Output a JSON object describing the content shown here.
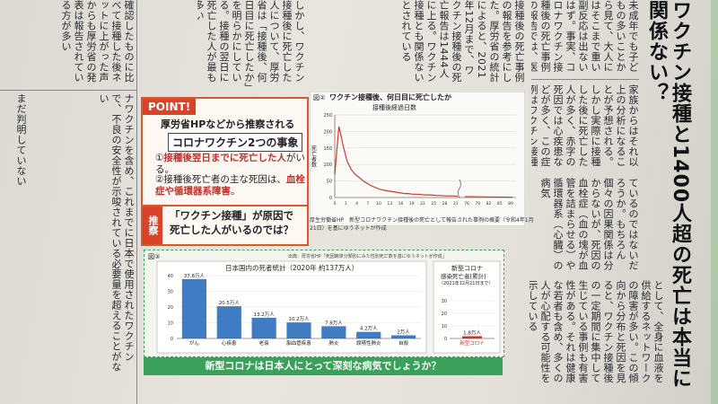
{
  "headline": "ワクチン接種と1400人超の死亡は本当に関係ない？",
  "right_col": "未成年でも子どもの多いことから見て、大人にはそこまで重い副反応は出ないはず。事実、コロナワクチン接種後の死亡事例の報告では、医療機関や製造販売業者から厚労省への報告が上がっていた。",
  "right_col2": "家族からはそれ以上の分析になることが予想される。しかし実際に接種した後に死亡した人が多く、赤字の死因では心疾患などが多く、この症例はワクチン接種との因果関係を示唆している",
  "right_col3": "ているのではないだろうか。もちろん個々の因果関係は分からないが、死因の血栓症（血の塊が血管を詰まらせる）や循環器系（心臓）の病気",
  "right_col4": "として、全身に血液を供給するネットワークの障害が多い。この傾向から分布と死因を見ると、ワクチン接種後の一定期間に集中して生じている事例も有害性がある。それは健康な若者も含め、多くの人が心配する可能性を示している",
  "mid_col": "接種後の死亡事例の報告を参考にした。厚労省の統計によると、2021年12月まで、ワクチン接種後の死亡報告は1444人に上る。ワクチン接種とも関係ないとされている",
  "mid_col2": "しかし、ワクチン接種後に死亡した人について、厚労省は「接種後、何日目に死亡したか」を明らかにしている。接種の翌日に死亡した人が最も多い",
  "left_col": "ナワクチンを含め、これまでに日本で使用されたワクチンで、不良の安全性が示唆されている必要量を超えることがない",
  "left_col2": "確認したものに比べて接種した後ネットに上がった声からも厚労省の発表は報告されている方が多い",
  "left_col3": "まだ判明していない",
  "point": {
    "tag": "POINT!",
    "title": "厚労省HPなどから推察される",
    "title2": "コロナワクチン2つの事象",
    "item1_prefix": "①",
    "item1_red": "接種後翌日までに死亡した人",
    "item1_suffix": "がいる。",
    "item2_prefix": "②接種後死亡者の主な死因は、",
    "item2_red": "血栓症や循環器系障害",
    "item2_suffix": "。"
  },
  "suisoku": {
    "tag": "推察",
    "line1": "「ワクチン接種」が原因で",
    "line2": "死亡した人がいるのでは？"
  },
  "fig2": {
    "label": "図②",
    "title": "ワクチン接種後、何日目に死亡したか",
    "xlabel": "接種後経過日数",
    "ylabel": "死亡者数",
    "caption": "厚生労働省HP　新型コロナワクチン接種後の死亡として報告された事例の概要（令和4年1月21日）を基にゆうネットが作成"
  },
  "fig3": {
    "label": "図③",
    "source": "出典：厚労省HP「死因簡単分類別にみた性別死亡数を基にゆうネットが作成」",
    "title": "日本国内の死者統計（2020年 約137万人）",
    "side_title1": "新型コロナ",
    "side_title2": "感染死亡者[累計]",
    "side_title3": "（2021年12月21日まで）"
  },
  "footer_q": "新型コロナは日本人にとって深刻な病気でしょうか？",
  "chart_data": [
    {
      "type": "line",
      "title": "ワクチン接種後、何日目に死亡したか",
      "xlabel": "接種後経過日数",
      "ylabel": "死亡者数",
      "x": [
        0,
        1,
        2,
        3,
        4,
        5,
        6,
        7,
        8,
        9,
        10,
        11,
        12,
        13,
        14,
        15,
        16,
        17,
        18,
        19,
        20,
        21,
        22,
        23,
        24,
        25,
        26,
        27,
        28,
        29,
        30
      ],
      "y": [
        70,
        215,
        160,
        110,
        85,
        70,
        60,
        50,
        42,
        35,
        30,
        25,
        22,
        20,
        18,
        16,
        14,
        12,
        12,
        10,
        10,
        9,
        8,
        8,
        7,
        6,
        6,
        5,
        5,
        5,
        4
      ],
      "x_ticks": [
        "0",
        "1",
        "4",
        "7",
        "10",
        "13",
        "16",
        "19",
        "22",
        "25",
        "28",
        "31",
        "76",
        "79",
        "82",
        "85",
        "89"
      ],
      "ylim": [
        0,
        250
      ],
      "y_ticks": [
        "0",
        "50",
        "100",
        "150",
        "200",
        "250"
      ]
    },
    {
      "type": "bar",
      "title": "日本国内の死者統計（2020年 約137万人）",
      "categories": [
        "がん",
        "心疾患",
        "老衰",
        "脳血管疾患",
        "肺炎",
        "誤嚥性肺炎",
        "自殺"
      ],
      "values": [
        37.8,
        20.5,
        13.2,
        10.2,
        7.8,
        4.2,
        2
      ],
      "value_labels": [
        "37.8万人",
        "20.5万人",
        "13.2万人",
        "10.2万人",
        "7.8万人",
        "4.2万人",
        "2万人"
      ],
      "ylim": [
        0,
        40
      ],
      "y_ticks": [
        "0",
        "10",
        "20",
        "30",
        "40"
      ]
    },
    {
      "type": "bar",
      "title": "新型コロナ感染死亡者[累計]（2021年12月21日まで）",
      "categories": [
        "新型コロナ"
      ],
      "values": [
        1.8
      ],
      "value_labels": [
        "1.8万人"
      ],
      "ylim": [
        0,
        40
      ],
      "y_ticks": [
        "0",
        "10",
        "20",
        "30"
      ]
    }
  ]
}
